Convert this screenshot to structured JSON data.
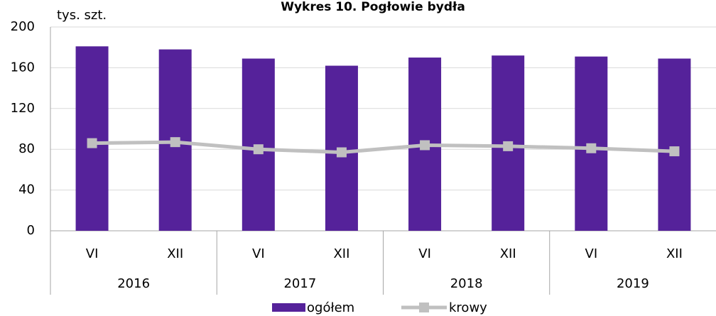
{
  "chart_data": {
    "type": "combo",
    "title": "Wykres 10. Pogłowie bydła",
    "y_label": "tys. szt.",
    "categories": [
      "VI",
      "XII",
      "VI",
      "XII",
      "VI",
      "XII",
      "VI",
      "XII"
    ],
    "category_groups": [
      "2016",
      "2017",
      "2018",
      "2019"
    ],
    "series": [
      {
        "name": "ogółem",
        "type": "bar",
        "color": "#55229a",
        "values": [
          181,
          178,
          169,
          162,
          170,
          172,
          171,
          169
        ]
      },
      {
        "name": "krowy",
        "type": "line",
        "color": "#c0c0c0",
        "values": [
          86,
          87,
          80,
          77,
          84,
          83,
          81,
          78
        ]
      }
    ],
    "ylim": [
      0,
      200
    ],
    "yticks": [
      0,
      40,
      80,
      120,
      160,
      200
    ],
    "grid": true,
    "legend": "bottom"
  }
}
